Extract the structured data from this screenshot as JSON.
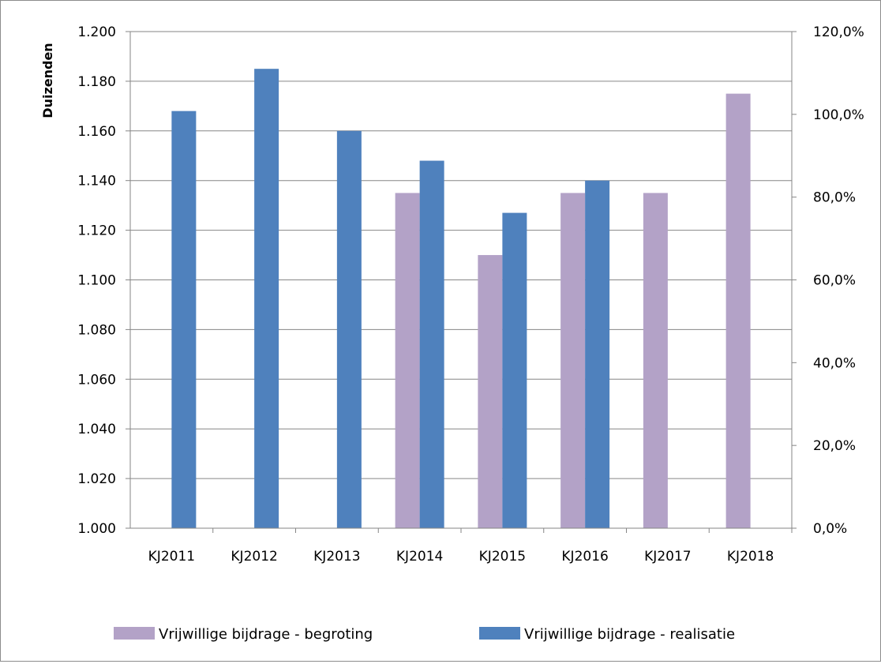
{
  "chart_data": {
    "type": "bar",
    "categories": [
      "KJ2011",
      "KJ2012",
      "KJ2013",
      "KJ2014",
      "KJ2015",
      "KJ2016",
      "KJ2017",
      "KJ2018"
    ],
    "series": [
      {
        "name": "Vrijwillige bijdrage - begroting",
        "color": "#B3A2C7",
        "values": [
          null,
          null,
          null,
          1135,
          1110,
          1135,
          1135,
          1175
        ]
      },
      {
        "name": "Vrijwillige bijdrage - realisatie",
        "color": "#4F81BD",
        "values": [
          1168,
          1185,
          1160,
          1148,
          1127,
          1140,
          null,
          null
        ]
      }
    ],
    "ylabel": "Duizenden",
    "ylim": [
      1000,
      1200
    ],
    "y_ticks": [
      "1.000",
      "1.020",
      "1.040",
      "1.060",
      "1.080",
      "1.100",
      "1.120",
      "1.140",
      "1.160",
      "1.180",
      "1.200"
    ],
    "y2lim": [
      0,
      120
    ],
    "y2_ticks": [
      "0,0%",
      "20,0%",
      "40,0%",
      "60,0%",
      "80,0%",
      "100,0%",
      "120,0%"
    ],
    "grid": true,
    "legend": "bottom"
  }
}
